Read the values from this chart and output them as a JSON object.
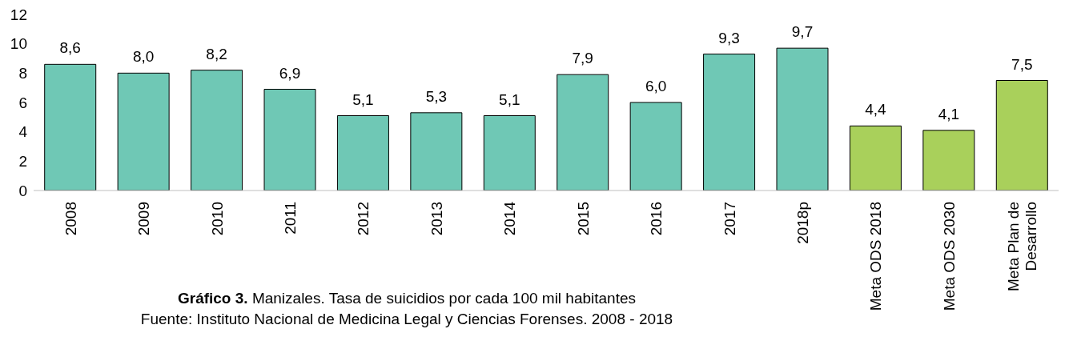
{
  "chart_data": {
    "type": "bar",
    "title": "Gráfico 3. Manizales. Tasa de suicidios por cada 100 mil habitantes",
    "annotations": [
      "Fuente: Instituto Nacional de Medicina Legal y Ciencias Forenses. 2008 - 2018"
    ],
    "categories": [
      "2008",
      "2009",
      "2010",
      "2011",
      "2012",
      "2013",
      "2014",
      "2015",
      "2016",
      "2017",
      "2018p",
      "Meta ODS 2018",
      "Meta ODS 2030",
      "Meta Plan de Desarrollo"
    ],
    "values": [
      8.6,
      8.0,
      8.2,
      6.9,
      5.1,
      5.3,
      5.1,
      7.9,
      6.0,
      9.3,
      9.7,
      4.4,
      4.1,
      7.5
    ],
    "value_labels": [
      "8,6",
      "8,0",
      "8,2",
      "6,9",
      "5,1",
      "5,3",
      "5,1",
      "7,9",
      "6,0",
      "9,3",
      "9,7",
      "4,4",
      "4,1",
      "7,5"
    ],
    "colors": [
      "#6fc8b5",
      "#6fc8b5",
      "#6fc8b5",
      "#6fc8b5",
      "#6fc8b5",
      "#6fc8b5",
      "#6fc8b5",
      "#6fc8b5",
      "#6fc8b5",
      "#6fc8b5",
      "#6fc8b5",
      "#a9d05b",
      "#a9d05b",
      "#a9d05b"
    ],
    "ylim": [
      0,
      12
    ],
    "yticks": [
      0,
      2,
      4,
      6,
      8,
      10,
      12
    ],
    "grid": false,
    "legend": false
  }
}
